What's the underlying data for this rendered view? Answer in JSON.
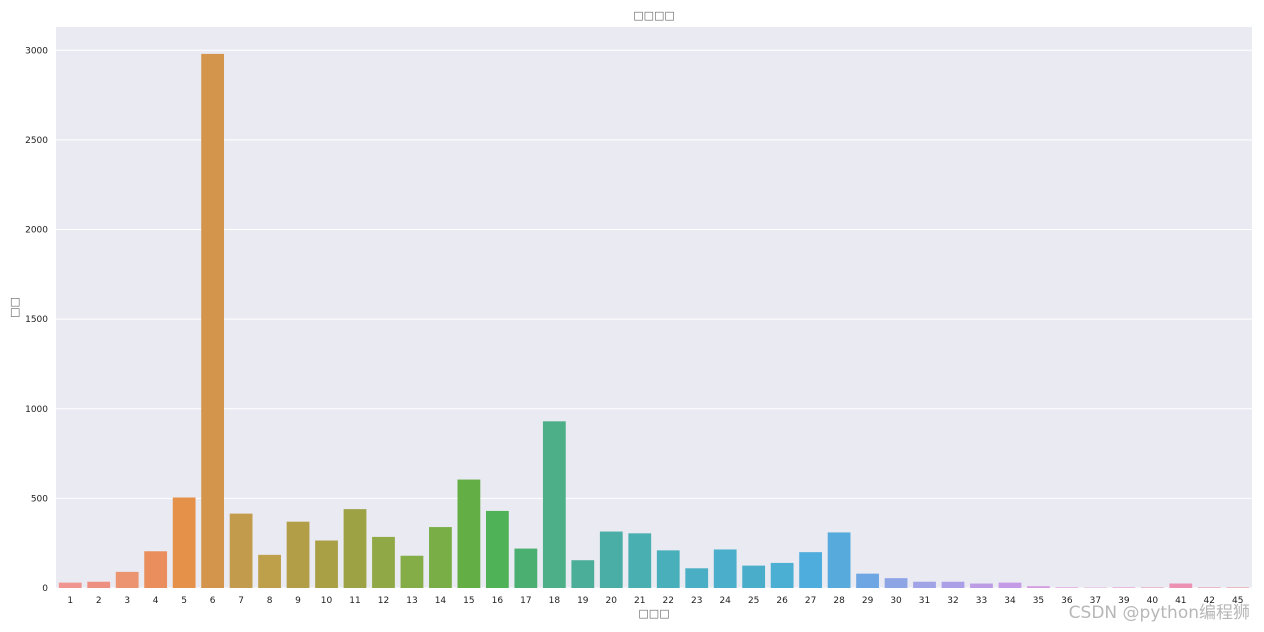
{
  "chart_data": {
    "type": "bar",
    "title": "□□□□",
    "xlabel": "□□□",
    "ylabel": "□□",
    "categories": [
      "1",
      "2",
      "3",
      "4",
      "5",
      "6",
      "7",
      "8",
      "9",
      "10",
      "11",
      "12",
      "13",
      "14",
      "15",
      "16",
      "17",
      "18",
      "19",
      "20",
      "21",
      "22",
      "23",
      "24",
      "25",
      "26",
      "27",
      "28",
      "29",
      "30",
      "31",
      "32",
      "33",
      "34",
      "35",
      "36",
      "37",
      "39",
      "40",
      "41",
      "42",
      "45"
    ],
    "values": [
      30,
      35,
      90,
      205,
      505,
      2980,
      415,
      185,
      370,
      265,
      440,
      285,
      180,
      340,
      605,
      430,
      220,
      930,
      155,
      315,
      305,
      210,
      110,
      215,
      125,
      140,
      200,
      310,
      80,
      55,
      35,
      35,
      25,
      30,
      10,
      3,
      2,
      3,
      3,
      25,
      3,
      3
    ],
    "colors": [
      "#f0958f",
      "#ee9081",
      "#eb946f",
      "#e98e5c",
      "#e5914a",
      "#d3954c",
      "#c39b4c",
      "#bfa04a",
      "#b29e47",
      "#a9a046",
      "#9da345",
      "#90a846",
      "#84ac47",
      "#79ae47",
      "#63ae45",
      "#4fb256",
      "#4caf72",
      "#4caf87",
      "#4bae98",
      "#4baea6",
      "#4aafb1",
      "#49b0bb",
      "#4aaec5",
      "#4bafcb",
      "#4aaeca",
      "#4baed3",
      "#4eaddc",
      "#56abdc",
      "#6ea6e3",
      "#8da4e5",
      "#a1a3e7",
      "#aba0e7",
      "#bc9de5",
      "#c59be7",
      "#d59be2",
      "#de96d6",
      "#e394cc",
      "#e892c3",
      "#ea93b8",
      "#ec91b2",
      "#ec929f",
      "#ef9296"
    ],
    "ylim": [
      0,
      3130
    ],
    "yticks": [
      0,
      500,
      1000,
      1500,
      2000,
      2500,
      3000
    ],
    "grid": true,
    "background": "#eaeaf2"
  },
  "watermark": "CSDN @python编程狮"
}
